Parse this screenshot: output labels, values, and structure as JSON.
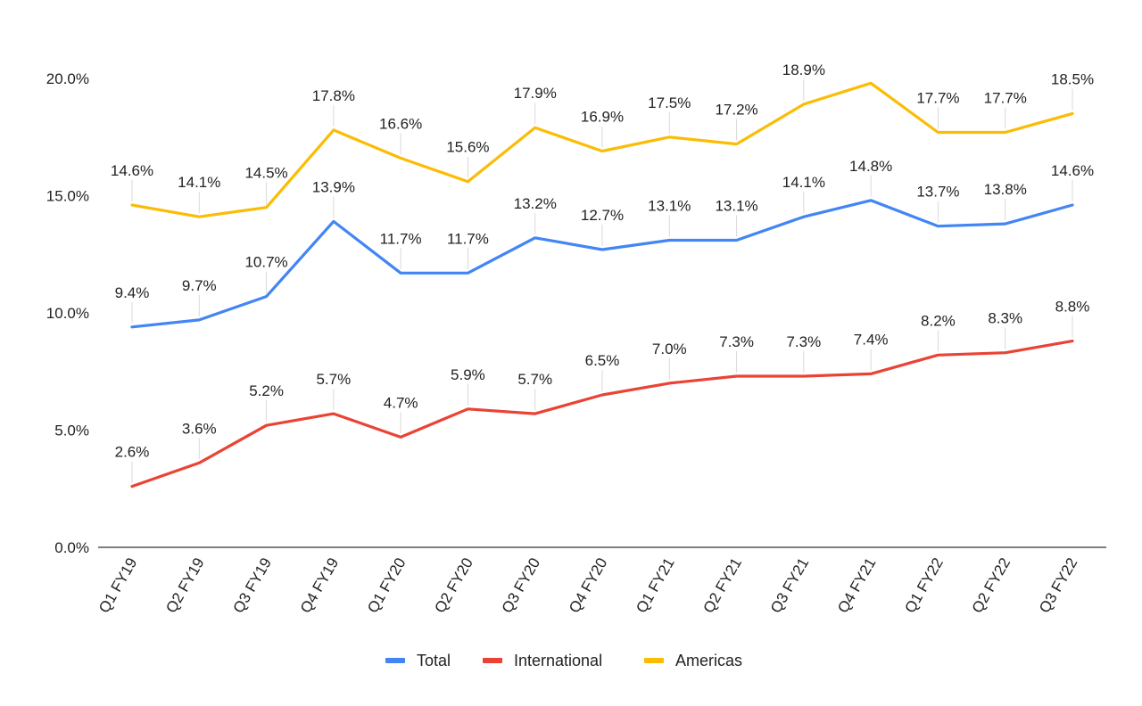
{
  "chart_data": {
    "type": "line",
    "categories": [
      "Q1 FY19",
      "Q2 FY19",
      "Q3 FY19",
      "Q4 FY19",
      "Q1 FY20",
      "Q2 FY20",
      "Q3 FY20",
      "Q4 FY20",
      "Q1 FY21",
      "Q2 FY21",
      "Q3 FY21",
      "Q4 FY21",
      "Q1 FY22",
      "Q2 FY22",
      "Q3 FY22"
    ],
    "ylim": [
      0,
      20
    ],
    "yticks": [
      {
        "value": 0,
        "label": "0.0%"
      },
      {
        "value": 5,
        "label": "5.0%"
      },
      {
        "value": 10,
        "label": "10.0%"
      },
      {
        "value": 15,
        "label": "15.0%"
      },
      {
        "value": 20,
        "label": "20.0%"
      }
    ],
    "grid": false,
    "legend_position": "bottom",
    "series": [
      {
        "name": "Total",
        "color": "#4285F4",
        "values": [
          9.4,
          9.7,
          10.7,
          13.9,
          11.7,
          11.7,
          13.2,
          12.7,
          13.1,
          13.1,
          14.1,
          14.8,
          13.7,
          13.8,
          14.6
        ],
        "labels": [
          "9.4%",
          "9.7%",
          "10.7%",
          "13.9%",
          "11.7%",
          "11.7%",
          "13.2%",
          "12.7%",
          "13.1%",
          "13.1%",
          "14.1%",
          "14.8%",
          "13.7%",
          "13.8%",
          "14.6%"
        ]
      },
      {
        "name": "International",
        "color": "#EA4335",
        "values": [
          2.6,
          3.6,
          5.2,
          5.7,
          4.7,
          5.9,
          5.7,
          6.5,
          7.0,
          7.3,
          7.3,
          7.4,
          8.2,
          8.3,
          8.8
        ],
        "labels": [
          "2.6%",
          "3.6%",
          "5.2%",
          "5.7%",
          "4.7%",
          "5.9%",
          "5.7%",
          "6.5%",
          "7.0%",
          "7.3%",
          "7.3%",
          "7.4%",
          "8.2%",
          "8.3%",
          "8.8%"
        ]
      },
      {
        "name": "Americas",
        "color": "#FBBC04",
        "values": [
          14.6,
          14.1,
          14.5,
          17.8,
          16.6,
          15.6,
          17.9,
          16.9,
          17.5,
          17.2,
          18.9,
          19.8,
          17.7,
          17.7,
          18.5
        ],
        "labels": [
          "14.6%",
          "14.1%",
          "14.5%",
          "17.8%",
          "16.6%",
          "15.6%",
          "17.9%",
          "16.9%",
          "17.5%",
          "17.2%",
          "18.9%",
          "",
          "17.7%",
          "17.7%",
          "18.5%"
        ]
      }
    ]
  }
}
